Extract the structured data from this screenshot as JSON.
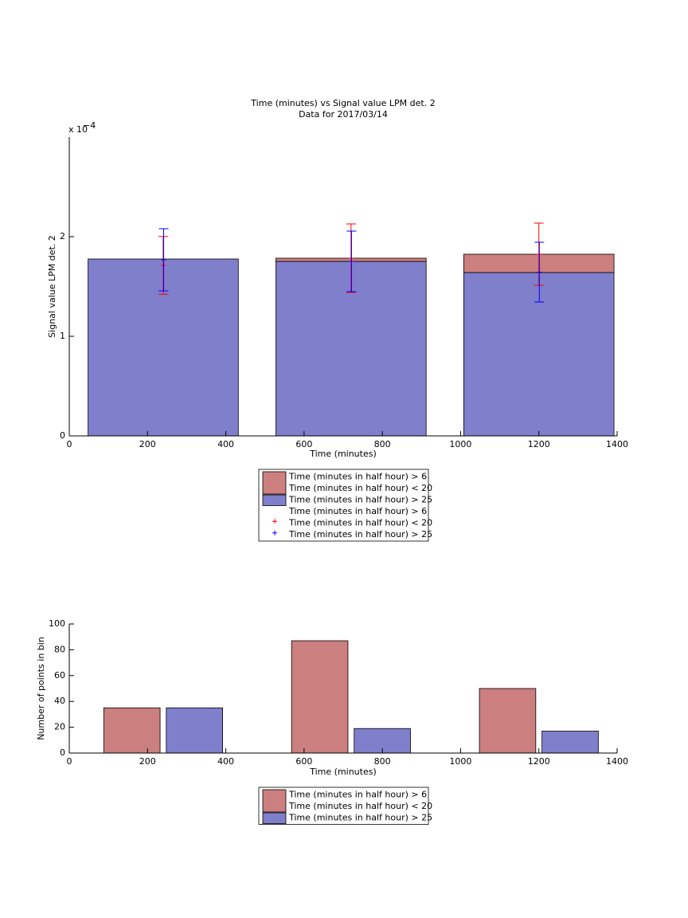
{
  "chart_data": [
    {
      "type": "bar",
      "stacked": true,
      "title": "Time (minutes) vs Signal value LPM det. 2",
      "subtitle": "Data for 2017/03/14",
      "xlabel": "Time (minutes)",
      "ylabel": "Signal value LPM det. 2",
      "y_exponent": {
        "base": "x 10",
        "power": "−4"
      },
      "x": [
        240,
        720,
        1200
      ],
      "xlim": [
        0,
        1400
      ],
      "xticks": [
        0,
        200,
        400,
        600,
        800,
        1000,
        1200,
        1400
      ],
      "ylim": [
        0,
        3
      ],
      "yticks": [
        0,
        1,
        2
      ],
      "series": [
        {
          "name": [
            "Time (minutes in half hour) > 6",
            "Time (minutes in half hour) < 20"
          ],
          "color": "#cc7f7f",
          "values": [
            0,
            0.032,
            0.184
          ]
        },
        {
          "name": [
            "Time (minutes in half hour) > 25"
          ],
          "color": "#7f7fcc",
          "values": [
            1.776,
            1.752,
            1.64
          ]
        }
      ],
      "errorbars": [
        {
          "name": [
            "Time (minutes in half hour) > 6",
            "Time (minutes in half hour) < 20"
          ],
          "color": "#ff0000",
          "values": [
            1.712,
            1.784,
            1.824
          ],
          "errors": [
            0.29,
            0.344,
            0.312
          ]
        },
        {
          "name": [
            "Time (minutes in half hour) > 25"
          ],
          "color": "#0000ff",
          "values": [
            1.768,
            1.752,
            1.644
          ],
          "errors": [
            0.312,
            0.304,
            0.3
          ]
        }
      ],
      "legend": "bottom"
    },
    {
      "type": "bar",
      "stacked": false,
      "xlabel": "Time (minutes)",
      "ylabel": "Number of points in bin",
      "x": [
        240,
        720,
        1200
      ],
      "xlim": [
        0,
        1400
      ],
      "xticks": [
        0,
        200,
        400,
        600,
        800,
        1000,
        1200,
        1400
      ],
      "ylim": [
        0,
        100
      ],
      "yticks": [
        0,
        20,
        40,
        60,
        80,
        100
      ],
      "series": [
        {
          "name": [
            "Time (minutes in half hour) > 6",
            "Time (minutes in half hour) < 20"
          ],
          "color": "#cc7f7f",
          "values": [
            35,
            87,
            50
          ]
        },
        {
          "name": [
            "Time (minutes in half hour) > 25"
          ],
          "color": "#7f7fcc",
          "values": [
            35,
            19,
            17
          ]
        }
      ],
      "legend": "bottom"
    }
  ]
}
